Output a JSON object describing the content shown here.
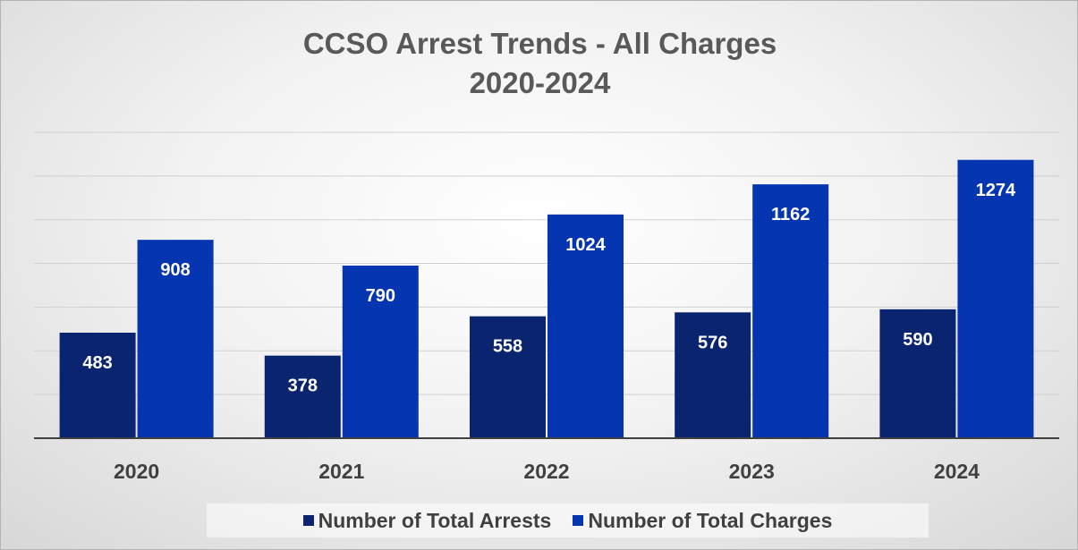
{
  "chart_data": {
    "type": "bar",
    "title": "CCSO Arrest Trends - All Charges",
    "subtitle": "2020-2024",
    "categories": [
      "2020",
      "2021",
      "2022",
      "2023",
      "2024"
    ],
    "series": [
      {
        "name": "Number of Total Arrests",
        "color": "#0b2470",
        "values": [
          483,
          378,
          558,
          576,
          590
        ]
      },
      {
        "name": "Number of Total Charges",
        "color": "#0535b0",
        "values": [
          908,
          790,
          1024,
          1162,
          1274
        ]
      }
    ],
    "ylim": [
      0,
      1400
    ],
    "grid": true,
    "data_labels": true,
    "legend": "bottom"
  }
}
